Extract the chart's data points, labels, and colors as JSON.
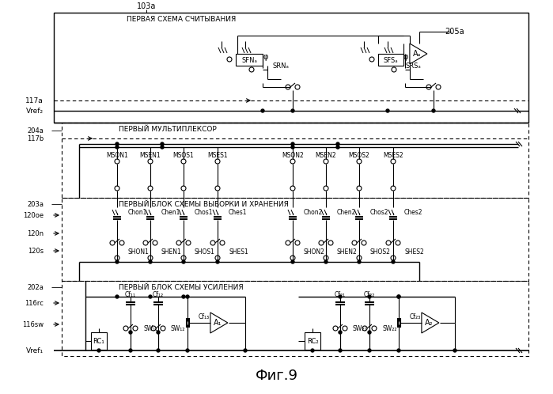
{
  "title": "Фиг.9",
  "bg_color": "#ffffff",
  "label_103a": "103a",
  "label_205a": "205a",
  "label_117a": "117a",
  "label_Vref2": "Vref₂",
  "label_204a": "204a",
  "label_117b": "117b",
  "label_120oe": "120oe",
  "label_120n": "120n",
  "label_120s": "120s",
  "label_203a": "203a",
  "label_202a": "202a",
  "label_116rc": "116rc",
  "label_116sw": "116sw",
  "label_Vref1": "Vref₁",
  "box1_label": "ПЕРВАЯ СХЕМА СЧИТЫВАНИЯ",
  "box2_label": "ПЕРВЫЙ МУЛЬТИПЛЕКСОР",
  "box3_label": "ПЕРВЫЙ БЛОК СХЕМЫ ВЫБОРКИ И ХРАНЕНИЯ",
  "box4_label": "ПЕРВЫЙ БЛОК СХЕМЫ УСИЛЕНИЯ",
  "sfna": "SFNₐ",
  "srna": "SRNₐ",
  "sfsa": "SFSₐ",
  "srsa": "SRSₐ",
  "Aa": "Aₐ",
  "mux_labels1": [
    "MSON1",
    "MSEN1",
    "MSOS1",
    "MSES1"
  ],
  "mux_labels2": [
    "MSON2",
    "MSEN2",
    "MSOS2",
    "MSES2"
  ],
  "sh_labels1": [
    "Chon1",
    "Chen1",
    "Chos1",
    "Ches1"
  ],
  "sh_labels2": [
    "Chon2",
    "Chen2",
    "Chos2",
    "Ches2"
  ],
  "sh_bot1": [
    "SHON1",
    "SHEN1",
    "SHOS1",
    "SHES1"
  ],
  "sh_bot2": [
    "SHON2",
    "SHEN2",
    "SHOS2",
    "SHES2"
  ],
  "rc1": "RC₁",
  "cf11": "Cf₁₁",
  "cf12": "Cf₁₂",
  "cf13": "Cf₁₃",
  "sw11": "SW₁₁",
  "sw12": "SW₁₂",
  "A1": "A₁",
  "rc2": "RC₂",
  "cf21": "Cf₂₁",
  "cf22": "Cf₂₂",
  "cf23": "Cf₂₃",
  "sw21": "SW₂₁",
  "sw22": "SW₂₂",
  "A2": "A₂"
}
